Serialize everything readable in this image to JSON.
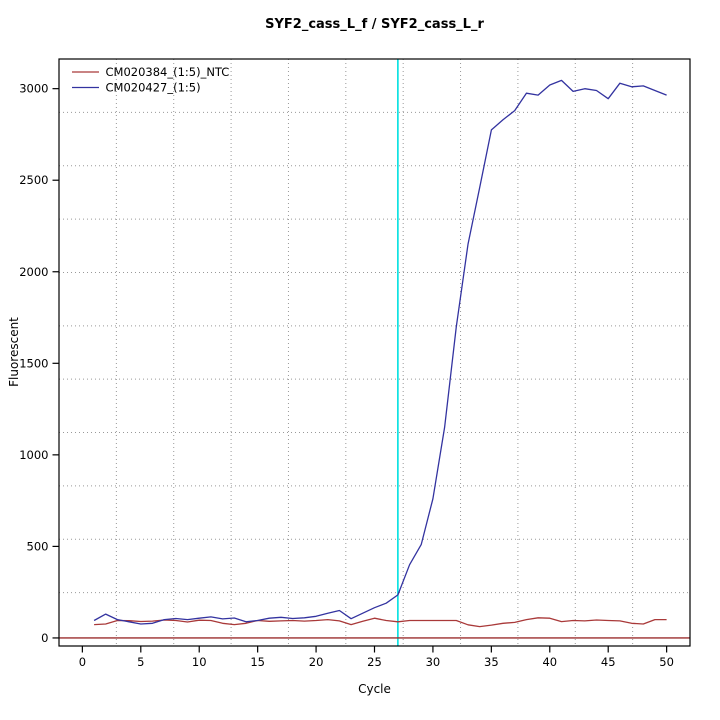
{
  "page": {
    "background": "#ffffff"
  },
  "chart_data": {
    "type": "line",
    "title": "SYF2_cass_L_f / SYF2_cass_L_r",
    "xlabel": "Cycle",
    "ylabel": "Fluorescent",
    "xlim": [
      -2,
      52
    ],
    "ylim": [
      -44,
      3162
    ],
    "x_ticks": [
      0,
      5,
      10,
      15,
      20,
      25,
      30,
      35,
      40,
      45,
      50
    ],
    "y_ticks": [
      0,
      500,
      1000,
      1500,
      2000,
      2500,
      3000
    ],
    "grid": {
      "nx": 11,
      "ny": 11,
      "line_style": "dotted",
      "color": "#999999"
    },
    "axis_color": "#000000",
    "annotations": {
      "threshold_line": {
        "y": 0,
        "color": "#9b2d2d",
        "orientation": "horizontal"
      },
      "ct_line": {
        "x": 27,
        "color": "#00e0e0",
        "orientation": "vertical"
      }
    },
    "x": [
      1,
      2,
      3,
      4,
      5,
      6,
      7,
      8,
      9,
      10,
      11,
      12,
      13,
      14,
      15,
      16,
      17,
      18,
      19,
      20,
      21,
      22,
      23,
      24,
      25,
      26,
      27,
      28,
      29,
      30,
      31,
      32,
      33,
      34,
      35,
      36,
      37,
      38,
      39,
      40,
      41,
      42,
      43,
      44,
      45,
      46,
      47,
      48,
      49,
      50
    ],
    "series": [
      {
        "name": "CM020384_(1:5)_NTC",
        "color": "#a93939",
        "values": [
          73,
          76,
          95,
          94,
          90,
          92,
          98,
          95,
          87,
          97,
          95,
          80,
          73,
          80,
          95,
          91,
          93,
          95,
          92,
          95,
          100,
          93,
          73,
          91,
          108,
          95,
          88,
          95,
          95,
          95,
          95,
          95,
          72,
          62,
          70,
          80,
          85,
          100,
          110,
          108,
          89,
          95,
          93,
          98,
          95,
          93,
          80,
          76,
          100,
          100
        ]
      },
      {
        "name": "CM020427_(1:5)",
        "color": "#3333a0",
        "values": [
          95,
          130,
          100,
          88,
          76,
          80,
          100,
          106,
          100,
          108,
          115,
          104,
          109,
          88,
          95,
          108,
          113,
          106,
          110,
          118,
          135,
          150,
          105,
          135,
          165,
          190,
          235,
          400,
          510,
          760,
          1150,
          1700,
          2150,
          2460,
          2775,
          2830,
          2880,
          2975,
          2965,
          3020,
          3045,
          2985,
          3000,
          2990,
          2945,
          3030,
          3010,
          3015,
          2990,
          2965
        ]
      }
    ],
    "legend": {
      "position": "top-left",
      "entries": [
        "CM020384_(1:5)_NTC",
        "CM020427_(1:5)"
      ]
    }
  }
}
